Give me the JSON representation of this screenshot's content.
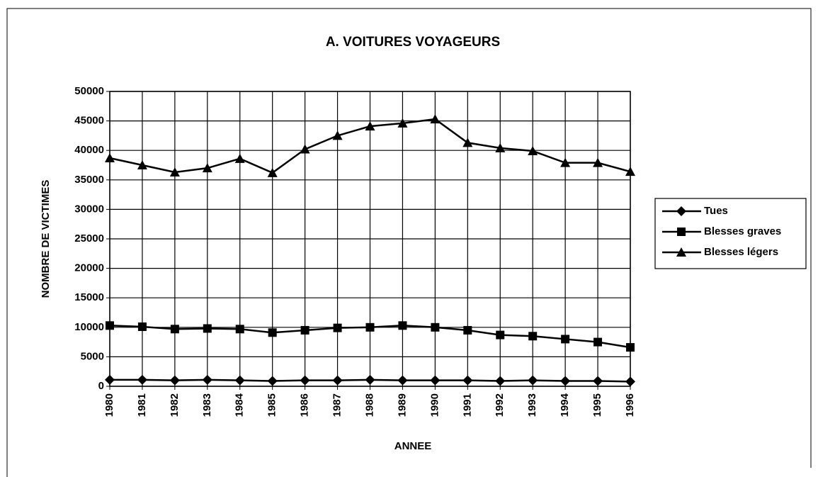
{
  "chart_data": {
    "type": "line",
    "title": "A. VOITURES VOYAGEURS",
    "x_label": "ANNEE",
    "y_label": "NOMBRE DE VICTIMES",
    "categories": [
      "1980",
      "1981",
      "1982",
      "1983",
      "1984",
      "1985",
      "1986",
      "1987",
      "1988",
      "1989",
      "1990",
      "1991",
      "1992",
      "1993",
      "1994",
      "1995",
      "1996"
    ],
    "series": [
      {
        "name": "Tues",
        "color": "#000000",
        "marker": "diamond",
        "values": [
          1100,
          1100,
          1000,
          1100,
          1000,
          900,
          1000,
          1000,
          1100,
          1000,
          1000,
          1000,
          900,
          1000,
          900,
          900,
          800
        ]
      },
      {
        "name": "Blesses graves",
        "color": "#000000",
        "marker": "square",
        "values": [
          10300,
          10100,
          9700,
          9800,
          9700,
          9100,
          9500,
          9900,
          10000,
          10300,
          10000,
          9500,
          8700,
          8500,
          8000,
          7500,
          6600
        ]
      },
      {
        "name": "Blesses légers",
        "color": "#000000",
        "marker": "triangle",
        "values": [
          38700,
          37500,
          36300,
          37000,
          38600,
          36200,
          40200,
          42500,
          44100,
          44600,
          45300,
          41300,
          40400,
          39900,
          37900,
          37900,
          36400
        ]
      }
    ],
    "ylim": [
      0,
      50000
    ],
    "yticks": [
      0,
      5000,
      10000,
      15000,
      20000,
      25000,
      30000,
      35000,
      40000,
      45000,
      50000
    ],
    "grid": true,
    "legend": "right"
  }
}
